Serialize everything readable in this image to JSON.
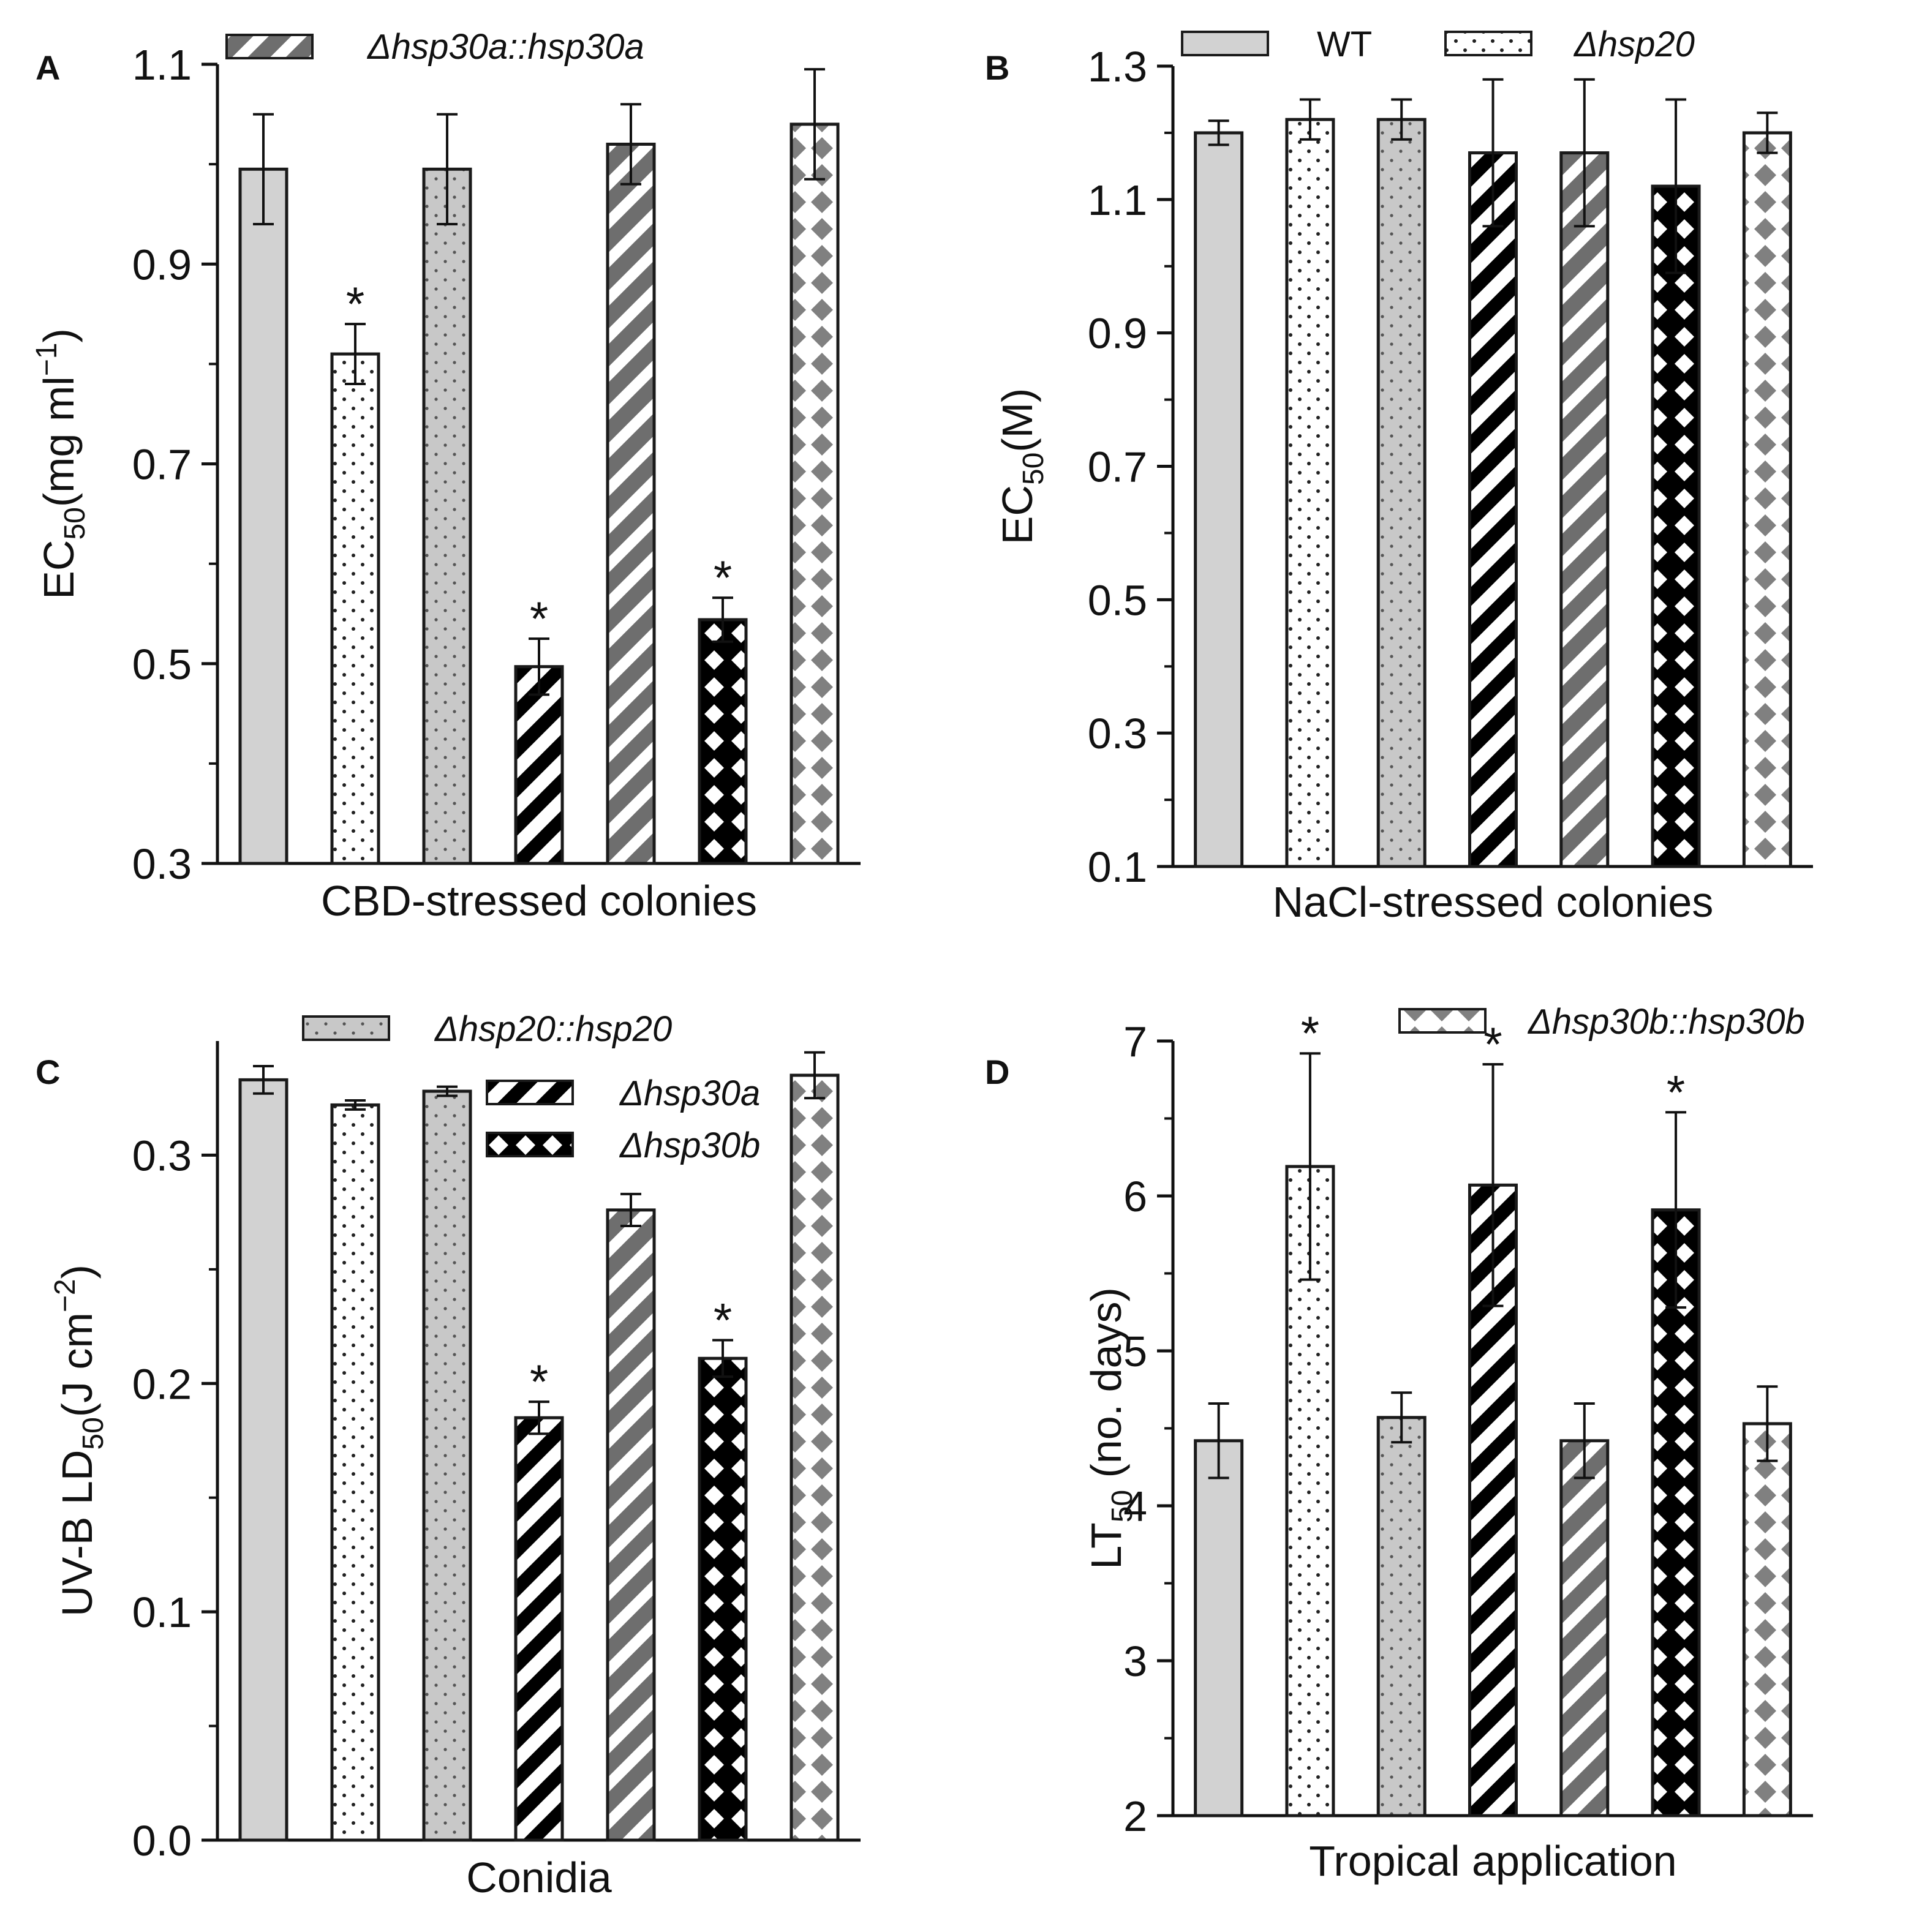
{
  "colors": {
    "wt": "#d2d2d2",
    "stripe_gray": "#6e6e6e",
    "black": "#000000",
    "diamond_gray": "#808080",
    "outline": "#1a1a1a"
  },
  "legend": {
    "wt": "WT",
    "hsp20": "Δhsp20",
    "hsp20c": "Δhsp20::hsp20",
    "hsp30a": "Δhsp30a",
    "hsp30ac": "Δhsp30a::hsp30a",
    "hsp30b": "Δhsp30b",
    "hsp30bc": "Δhsp30b::hsp30b"
  },
  "significance_marker": "*",
  "chart_data": [
    {
      "panel": "A",
      "type": "bar",
      "categories": [
        "WT",
        "Δhsp20",
        "Δhsp20::hsp20",
        "Δhsp30a",
        "Δhsp30a::hsp30a",
        "Δhsp30b",
        "Δhsp30b::hsp30b"
      ],
      "values": [
        0.995,
        0.81,
        0.995,
        0.497,
        1.02,
        0.544,
        1.04
      ],
      "errors": [
        0.055,
        0.03,
        0.055,
        0.028,
        0.04,
        0.022,
        0.055
      ],
      "significant": [
        false,
        true,
        false,
        true,
        false,
        true,
        false
      ],
      "xlabel": "CBD-stressed colonies",
      "ylabel_main": "EC",
      "ylabel_sub": "50",
      "ylabel_unit": "(mg ml",
      "ylabel_sup": "−1",
      "ylabel_close": ")",
      "ylim": [
        0.3,
        1.1
      ],
      "yticks": [
        "0.3",
        "0.5",
        "0.7",
        "0.9",
        "1.1"
      ],
      "legend_shown": [
        "hsp30ac"
      ]
    },
    {
      "panel": "B",
      "type": "bar",
      "categories": [
        "WT",
        "Δhsp20",
        "Δhsp20::hsp20",
        "Δhsp30a",
        "Δhsp30a::hsp30a",
        "Δhsp30b",
        "Δhsp30b::hsp30b"
      ],
      "values": [
        1.2,
        1.22,
        1.22,
        1.17,
        1.17,
        1.12,
        1.2
      ],
      "errors": [
        0.018,
        0.03,
        0.03,
        0.11,
        0.11,
        0.13,
        0.03
      ],
      "significant": [
        false,
        false,
        false,
        false,
        false,
        false,
        false
      ],
      "xlabel": "NaCl-stressed colonies",
      "ylabel_main": "EC",
      "ylabel_sub": "50",
      "ylabel_unit": "(M)",
      "ylabel_sup": "",
      "ylabel_close": "",
      "ylim": [
        0.1,
        1.3
      ],
      "yticks": [
        "0.1",
        "0.3",
        "0.5",
        "0.7",
        "0.9",
        "1.1",
        "1.3"
      ],
      "legend_shown": [
        "wt",
        "hsp20"
      ]
    },
    {
      "panel": "C",
      "type": "bar",
      "categories": [
        "WT",
        "Δhsp20",
        "Δhsp20::hsp20",
        "Δhsp30a",
        "Δhsp30a::hsp30a",
        "Δhsp30b",
        "Δhsp30b::hsp30b"
      ],
      "values": [
        0.333,
        0.322,
        0.328,
        0.185,
        0.276,
        0.211,
        0.335
      ],
      "errors": [
        0.006,
        0.002,
        0.002,
        0.007,
        0.007,
        0.008,
        0.01
      ],
      "significant": [
        false,
        false,
        false,
        true,
        false,
        true,
        false
      ],
      "xlabel": "Conidia",
      "ylabel_main": "UV-B LD",
      "ylabel_sub": "50",
      "ylabel_unit": "(J cm",
      "ylabel_sup": "−2",
      "ylabel_close": ")",
      "ylim": [
        0.0,
        0.35
      ],
      "yticks": [
        "0.0",
        "0.1",
        "0.2",
        "0.3"
      ],
      "legend_shown": [
        "hsp20c",
        "hsp30a",
        "hsp30b"
      ]
    },
    {
      "panel": "D",
      "type": "bar",
      "categories": [
        "WT",
        "Δhsp20",
        "Δhsp20::hsp20",
        "Δhsp30a",
        "Δhsp30a::hsp30a",
        "Δhsp30b",
        "Δhsp30b::hsp30b"
      ],
      "values": [
        4.42,
        6.19,
        4.57,
        6.07,
        4.42,
        5.91,
        4.53
      ],
      "errors": [
        0.24,
        0.73,
        0.16,
        0.78,
        0.24,
        0.63,
        0.24
      ],
      "significant": [
        false,
        true,
        false,
        true,
        false,
        true,
        false
      ],
      "xlabel": "Tropical application",
      "ylabel_main": "LT",
      "ylabel_sub": "50",
      "ylabel_unit": " (no. days)",
      "ylabel_sup": "",
      "ylabel_close": "",
      "ylim": [
        2,
        7
      ],
      "yticks": [
        "2",
        "3",
        "4",
        "5",
        "6",
        "7"
      ],
      "legend_shown": [
        "hsp30bc"
      ]
    }
  ]
}
